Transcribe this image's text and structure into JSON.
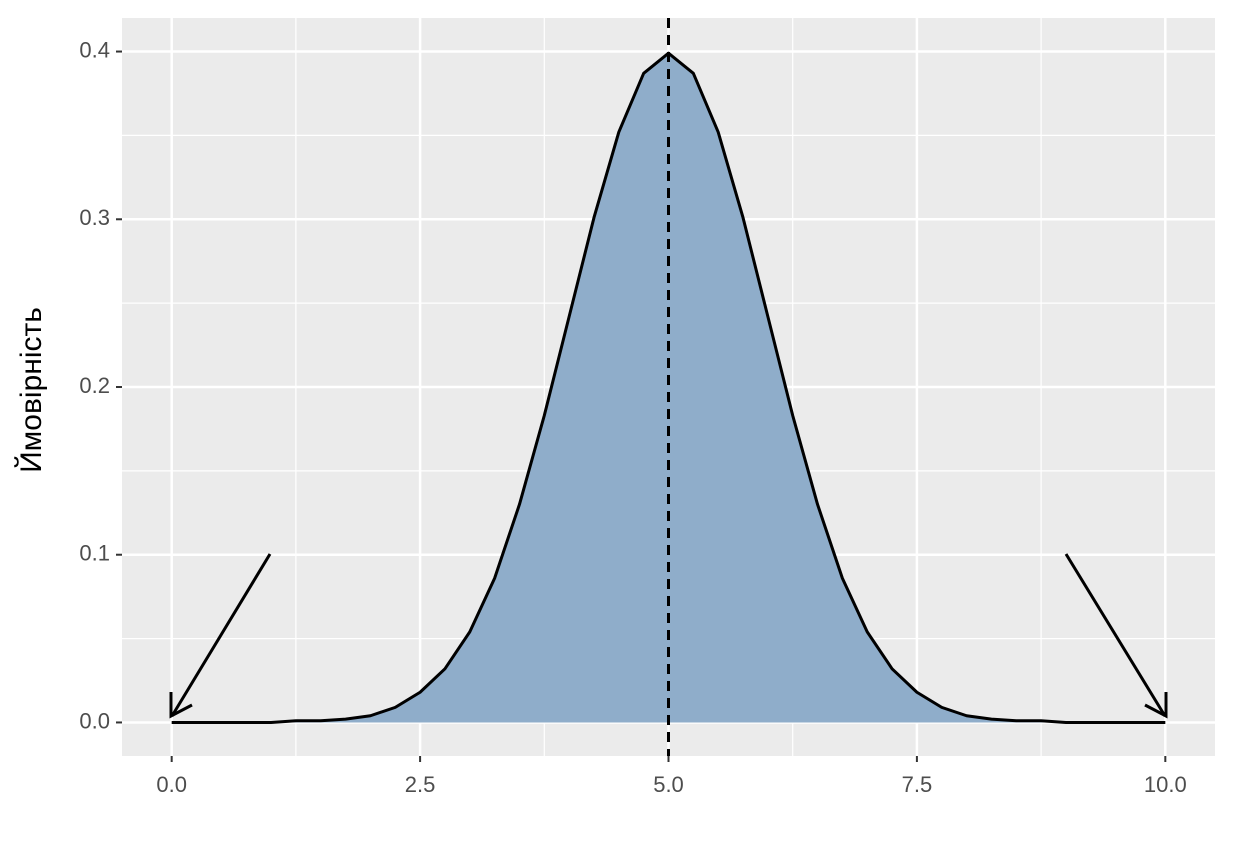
{
  "chart_data": {
    "type": "area",
    "y_label": "Ймовірність",
    "x": [
      0,
      0.25,
      0.5,
      0.75,
      1,
      1.25,
      1.5,
      1.75,
      2,
      2.25,
      2.5,
      2.75,
      3,
      3.25,
      3.5,
      3.75,
      4,
      4.25,
      4.5,
      4.75,
      5,
      5.25,
      5.5,
      5.75,
      6,
      6.25,
      6.5,
      6.75,
      7,
      7.25,
      7.5,
      7.75,
      8,
      8.25,
      8.5,
      8.75,
      9,
      9.25,
      9.5,
      9.75,
      10
    ],
    "values": [
      0,
      0,
      0,
      0,
      0,
      0.001,
      0.001,
      0.002,
      0.004,
      0.009,
      0.018,
      0.032,
      0.054,
      0.086,
      0.13,
      0.183,
      0.242,
      0.301,
      0.352,
      0.387,
      0.399,
      0.387,
      0.352,
      0.301,
      0.242,
      0.183,
      0.13,
      0.086,
      0.054,
      0.032,
      0.018,
      0.009,
      0.004,
      0.002,
      0.001,
      0.001,
      0,
      0,
      0,
      0,
      0
    ],
    "color": "#8fadca",
    "line_color": "#000000",
    "vline": 5,
    "xlim": [
      -0.5,
      10.5
    ],
    "ylim": [
      -0.02,
      0.42
    ],
    "xticks": [
      {
        "value": 0,
        "label": "0.0"
      },
      {
        "value": 2.5,
        "label": "2.5"
      },
      {
        "value": 5,
        "label": "5.0"
      },
      {
        "value": 7.5,
        "label": "7.5"
      },
      {
        "value": 10,
        "label": "10.0"
      }
    ],
    "yticks": [
      {
        "value": 0,
        "label": "0.0"
      },
      {
        "value": 0.1,
        "label": "0.1"
      },
      {
        "value": 0.2,
        "label": "0.2"
      },
      {
        "value": 0.3,
        "label": "0.3"
      },
      {
        "value": 0.4,
        "label": "0.4"
      }
    ],
    "grid": true
  }
}
